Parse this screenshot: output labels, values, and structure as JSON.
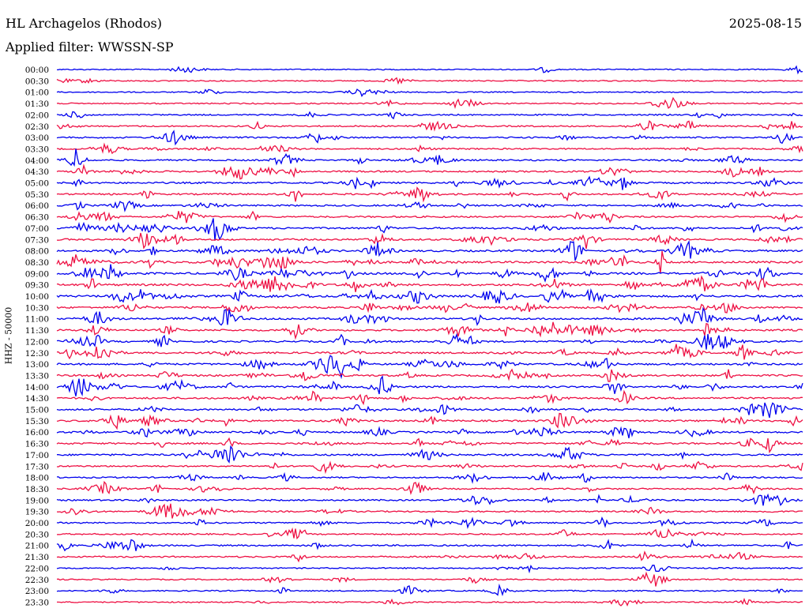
{
  "header": {
    "station": "HL Archagelos (Rhodos)",
    "date": "2025-08-15",
    "filter": "Applied filter: WWSSN-SP"
  },
  "chart_data": {
    "type": "line",
    "subtype": "helicorder",
    "ylabel": "HHZ - 50000",
    "row_labels": [
      "00:00",
      "00:30",
      "01:00",
      "01:30",
      "02:00",
      "02:30",
      "03:00",
      "03:30",
      "04:00",
      "04:30",
      "05:00",
      "05:30",
      "06:00",
      "06:30",
      "07:00",
      "07:30",
      "08:00",
      "08:30",
      "09:00",
      "09:30",
      "10:00",
      "10:30",
      "11:00",
      "11:30",
      "12:00",
      "12:30",
      "13:00",
      "13:30",
      "14:00",
      "14:30",
      "15:00",
      "15:30",
      "16:00",
      "16:30",
      "17:00",
      "17:30",
      "18:00",
      "18:30",
      "19:00",
      "19:30",
      "20:00",
      "20:30",
      "21:00",
      "21:30",
      "22:00",
      "22:30",
      "23:00",
      "23:30"
    ],
    "row_minutes": 30,
    "activity_level": [
      0.1,
      0.1,
      0.1,
      0.2,
      0.3,
      0.4,
      0.5,
      0.4,
      0.5,
      0.6,
      0.7,
      0.6,
      0.6,
      0.6,
      0.7,
      0.7,
      0.8,
      1.0,
      1.0,
      1.0,
      1.0,
      0.8,
      0.9,
      0.8,
      0.8,
      0.8,
      0.8,
      0.8,
      0.8,
      0.7,
      0.7,
      0.7,
      0.7,
      0.7,
      0.7,
      0.5,
      0.4,
      0.4,
      0.5,
      0.4,
      0.4,
      0.4,
      0.5,
      0.4,
      0.2,
      0.2,
      0.2,
      0.2
    ],
    "series": [
      {
        "color": "#0000ee"
      },
      {
        "color": "#ee1144"
      }
    ],
    "grid": false
  }
}
